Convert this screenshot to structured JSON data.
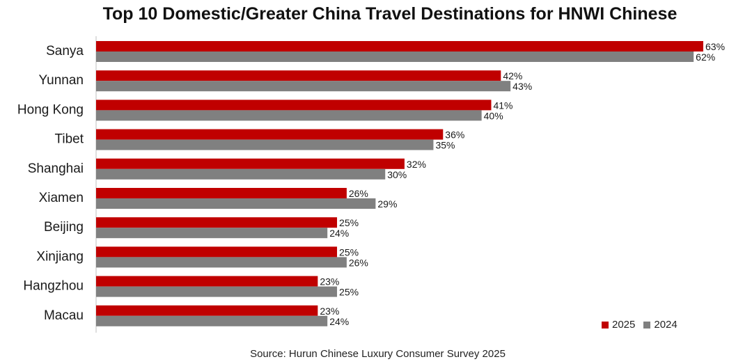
{
  "chart_data": {
    "type": "bar",
    "orientation": "horizontal",
    "title": "Top 10 Domestic/Greater China Travel Destinations for HNWI Chinese",
    "categories": [
      "Sanya",
      "Yunnan",
      "Hong Kong",
      "Tibet",
      "Shanghai",
      "Xiamen",
      "Beijing",
      "Xinjiang",
      "Hangzhou",
      "Macau"
    ],
    "series": [
      {
        "name": "2025",
        "color": "#c00000",
        "values": [
          63,
          42,
          41,
          36,
          32,
          26,
          25,
          25,
          23,
          23
        ]
      },
      {
        "name": "2024",
        "color": "#808080",
        "values": [
          62,
          43,
          40,
          35,
          30,
          29,
          24,
          26,
          25,
          24
        ]
      }
    ],
    "value_suffix": "%",
    "xlim": [
      0,
      63
    ],
    "grid": false,
    "legend_position": "bottom-right",
    "source": "Source: Hurun Chinese Luxury Consumer Survey 2025"
  }
}
